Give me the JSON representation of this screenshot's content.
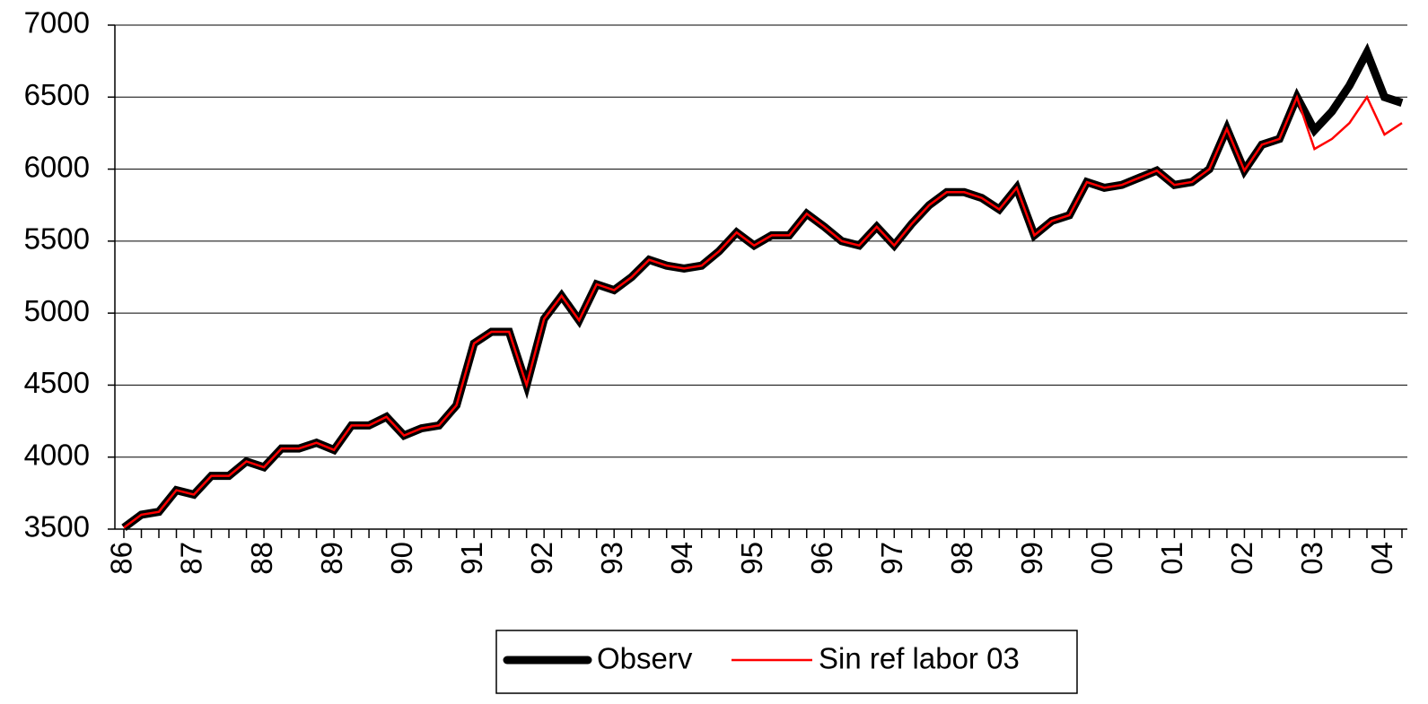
{
  "chart_data": {
    "type": "line",
    "categories": [
      "86",
      null,
      null,
      null,
      "87",
      null,
      null,
      null,
      "88",
      null,
      null,
      null,
      "89",
      null,
      null,
      null,
      "90",
      null,
      null,
      null,
      "91",
      null,
      null,
      null,
      "92",
      null,
      null,
      null,
      "93",
      null,
      null,
      null,
      "94",
      null,
      null,
      null,
      "95",
      null,
      null,
      null,
      "96",
      null,
      null,
      null,
      "97",
      null,
      null,
      null,
      "98",
      null,
      null,
      null,
      "99",
      null,
      null,
      null,
      "00",
      null,
      null,
      null,
      "01",
      null,
      null,
      null,
      "02",
      null,
      null,
      null,
      "03",
      null,
      null,
      null,
      "04",
      null
    ],
    "series": [
      {
        "name": "Observ",
        "color": "#000000",
        "values": [
          3510,
          3600,
          3620,
          3770,
          3740,
          3870,
          3870,
          3970,
          3930,
          4060,
          4060,
          4100,
          4050,
          4220,
          4220,
          4280,
          4150,
          4200,
          4220,
          4360,
          4790,
          4870,
          4870,
          4500,
          4960,
          5120,
          4950,
          5200,
          5160,
          5250,
          5370,
          5330,
          5310,
          5330,
          5430,
          5560,
          5470,
          5540,
          5540,
          5690,
          5600,
          5500,
          5470,
          5600,
          5470,
          5620,
          5750,
          5840,
          5840,
          5800,
          5720,
          5870,
          5540,
          5640,
          5680,
          5910,
          5870,
          5890,
          5940,
          5990,
          5890,
          5910,
          6000,
          6280,
          5990,
          6170,
          6210,
          6500,
          6270,
          6400,
          6580,
          6810,
          6500,
          6460
        ]
      },
      {
        "name": "Sin ref labor 03",
        "color": "#ff0000",
        "values": [
          3510,
          3600,
          3620,
          3770,
          3740,
          3870,
          3870,
          3970,
          3930,
          4060,
          4060,
          4100,
          4050,
          4220,
          4220,
          4280,
          4150,
          4200,
          4220,
          4360,
          4790,
          4870,
          4870,
          4500,
          4960,
          5120,
          4950,
          5200,
          5160,
          5250,
          5370,
          5330,
          5310,
          5330,
          5430,
          5560,
          5470,
          5540,
          5540,
          5690,
          5600,
          5500,
          5470,
          5600,
          5470,
          5620,
          5750,
          5840,
          5840,
          5800,
          5720,
          5870,
          5540,
          5640,
          5680,
          5910,
          5870,
          5890,
          5940,
          5990,
          5890,
          5910,
          6000,
          6280,
          5990,
          6170,
          6210,
          6500,
          6140,
          6210,
          6320,
          6500,
          6240,
          6320
        ]
      }
    ],
    "ylim": [
      3500,
      7000
    ],
    "yticks": [
      3500,
      4000,
      4500,
      5000,
      5500,
      6000,
      6500,
      7000
    ],
    "grid": true
  }
}
